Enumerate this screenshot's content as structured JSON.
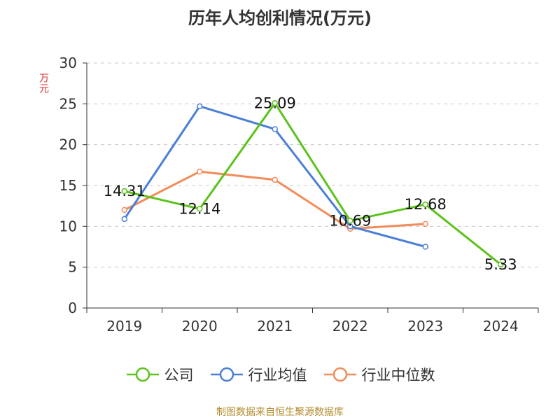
{
  "source": "制图数据来自恒生聚源数据库",
  "chart_data": {
    "type": "line",
    "title": "历年人均创利情况(万元)",
    "ylabel": "万元",
    "xlabel": "",
    "categories": [
      "2019",
      "2020",
      "2021",
      "2022",
      "2023",
      "2024"
    ],
    "ylim": [
      0,
      30
    ],
    "yticks": [
      "0",
      "5",
      "10",
      "15",
      "20",
      "25",
      "30"
    ],
    "grid": true,
    "legend_position": "bottom",
    "series": [
      {
        "name": "公司",
        "color": "#5cc21c",
        "values": [
          14.31,
          12.14,
          25.09,
          10.69,
          12.68,
          5.33
        ],
        "labels": [
          "14.31",
          "12.14",
          "25.09",
          "10.69",
          "12.68",
          "5.33"
        ]
      },
      {
        "name": "行业均值",
        "color": "#4a7fd6",
        "values": [
          10.9,
          24.7,
          21.9,
          10.0,
          7.5,
          null
        ],
        "labels": []
      },
      {
        "name": "行业中位数",
        "color": "#f28c59",
        "values": [
          12.0,
          16.7,
          15.7,
          9.7,
          10.3,
          null
        ],
        "labels": []
      }
    ]
  }
}
